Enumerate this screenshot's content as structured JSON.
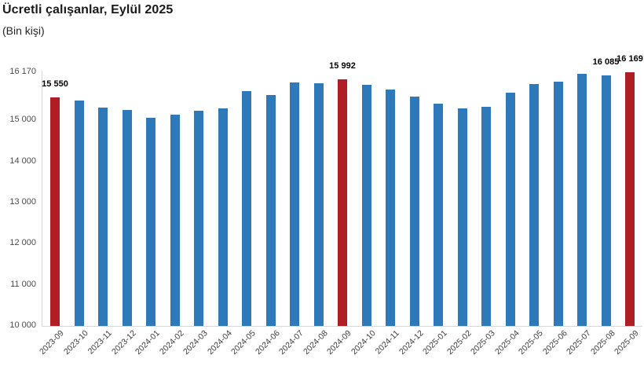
{
  "title": "Ücretli çalışanlar, Eylül 2025",
  "subtitle": "(Bin kişi)",
  "colors": {
    "bar": "#2e79b9",
    "highlight": "#ae1e24",
    "axis_line": "#d8d8d8",
    "tick_text": "#4a4a4a",
    "value_label_text": "#000000"
  },
  "chart_data": {
    "type": "bar",
    "title": "Ücretli çalışanlar, Eylül 2025",
    "subtitle": "(Bin kişi)",
    "xlabel": "",
    "ylabel": "",
    "ylim": [
      10000,
      16170
    ],
    "grid": false,
    "legend": false,
    "yticks": [
      {
        "label": "16 170",
        "value": 16170
      },
      {
        "label": "15 000",
        "value": 15000
      },
      {
        "label": "14 000",
        "value": 14000
      },
      {
        "label": "13 000",
        "value": 13000
      },
      {
        "label": "12 000",
        "value": 12000
      },
      {
        "label": "11 000",
        "value": 11000
      },
      {
        "label": "10 000",
        "value": 10000
      }
    ],
    "categories": [
      "2023-09",
      "2023-10",
      "2023-11",
      "2023-12",
      "2024-01",
      "2024-02",
      "2024-03",
      "2024-04",
      "2024-05",
      "2024-06",
      "2024-07",
      "2024-08",
      "2024-09",
      "2024-10",
      "2024-11",
      "2024-12",
      "2025-01",
      "2025-02",
      "2025-03",
      "2025-04",
      "2025-05",
      "2025-06",
      "2025-07",
      "2025-08",
      "2025-09"
    ],
    "values": [
      15550,
      15475,
      15315,
      15250,
      15070,
      15140,
      15230,
      15295,
      15710,
      15615,
      15925,
      15910,
      15992,
      15870,
      15750,
      15570,
      15410,
      15300,
      15330,
      15670,
      15885,
      15935,
      16130,
      16085,
      16169
    ],
    "highlight_indices": [
      0,
      12,
      24
    ],
    "point_labels": {
      "0": "15 550",
      "12": "15 992",
      "23": "16 085",
      "24": "16 169"
    }
  }
}
